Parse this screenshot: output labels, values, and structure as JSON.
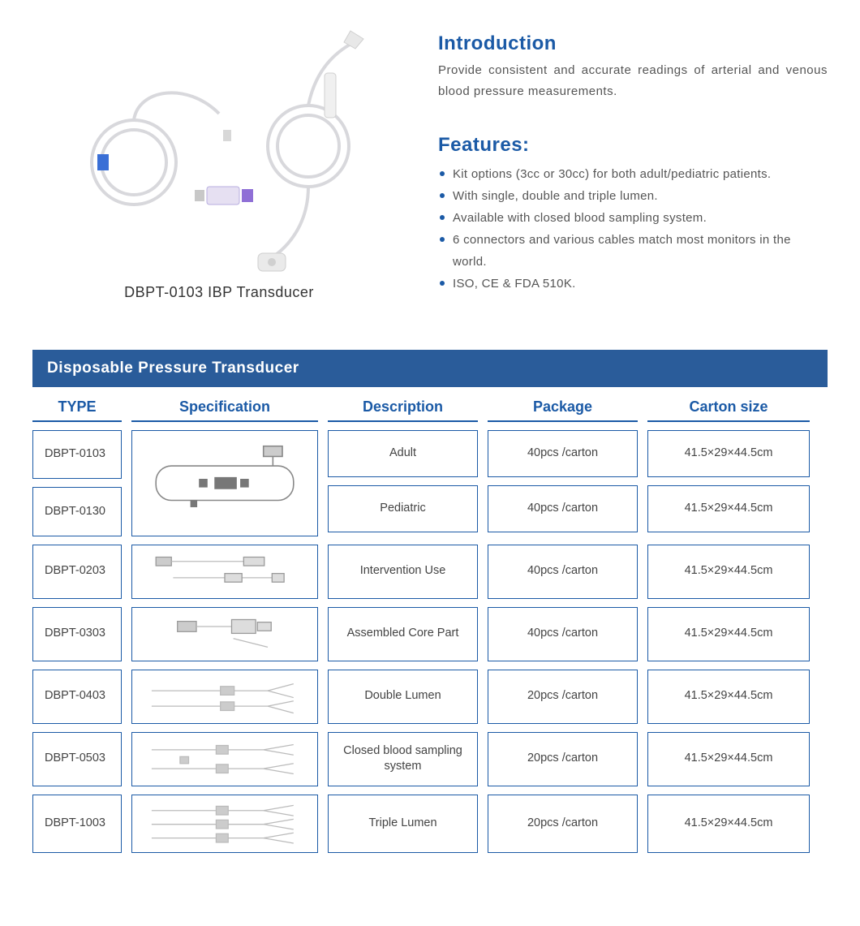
{
  "colors": {
    "brand_blue": "#1b5aa6",
    "header_bar": "#2a5c9a",
    "border": "#1b5aa6",
    "bullet": "#1b5aa6",
    "text_dark": "#333333",
    "text_body": "#555555"
  },
  "product": {
    "caption": "DBPT-0103 IBP Transducer"
  },
  "intro": {
    "title": "Introduction",
    "body": "Provide consistent and accurate readings of arterial and venous blood pressure measurements."
  },
  "features": {
    "title": "Features:",
    "items": [
      "Kit options (3cc or 30cc) for both adult/pediatric patients.",
      "With single, double and triple lumen.",
      "Available with closed blood sampling system.",
      "6 connectors and various cables match most monitors in the world.",
      "ISO, CE & FDA 510K."
    ]
  },
  "table": {
    "title": "Disposable Pressure Transducer",
    "columns": [
      "TYPE",
      "Specification",
      "Description",
      "Package",
      "Carton  size"
    ],
    "group1": {
      "types": [
        "DBPT-0103",
        "DBPT-0130"
      ],
      "rows": [
        {
          "desc": "Adult",
          "pack": "40pcs /carton",
          "size": "41.5×29×44.5cm"
        },
        {
          "desc": "Pediatric",
          "pack": "40pcs /carton",
          "size": "41.5×29×44.5cm"
        }
      ]
    },
    "rows": [
      {
        "type": "DBPT-0203",
        "desc": "Intervention Use",
        "pack": "40pcs /carton",
        "size": "41.5×29×44.5cm"
      },
      {
        "type": "DBPT-0303",
        "desc": "Assembled Core Part",
        "pack": "40pcs /carton",
        "size": "41.5×29×44.5cm"
      },
      {
        "type": "DBPT-0403",
        "desc": "Double Lumen",
        "pack": "20pcs /carton",
        "size": "41.5×29×44.5cm"
      },
      {
        "type": "DBPT-0503",
        "desc": "Closed blood sampling system",
        "pack": "20pcs /carton",
        "size": "41.5×29×44.5cm"
      },
      {
        "type": "DBPT-1003",
        "desc": "Triple Lumen",
        "pack": "20pcs /carton",
        "size": "41.5×29×44.5cm"
      }
    ]
  }
}
